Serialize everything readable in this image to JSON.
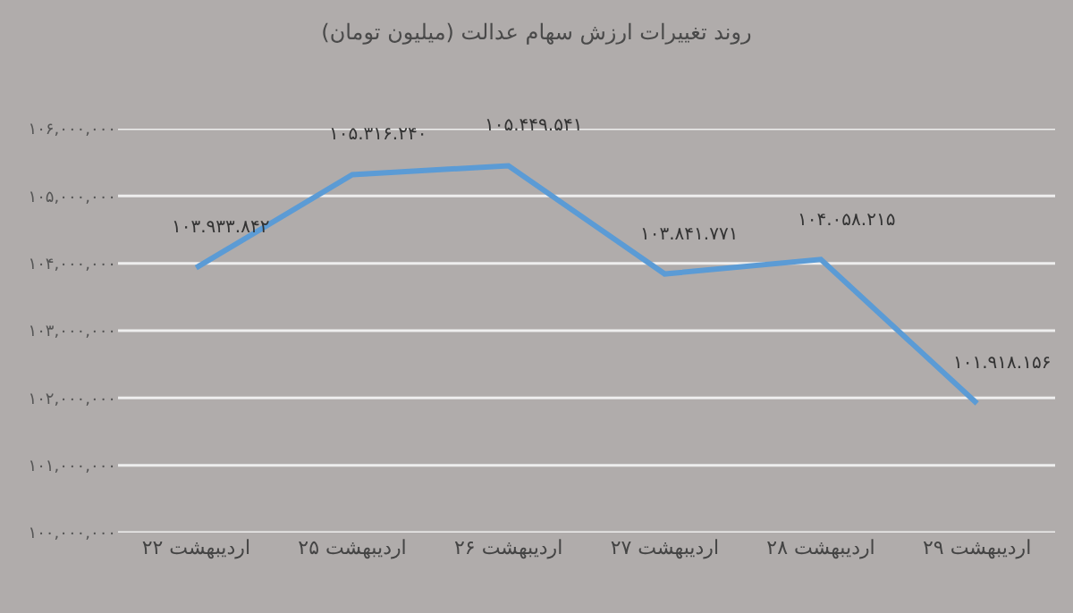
{
  "chart_data": {
    "type": "line",
    "title": "روند تغییرات ارزش سهام عدالت (میلیون تومان)",
    "categories": [
      "۲۲ اردیبهشت",
      "۲۵ اردیبهشت",
      "۲۶ اردیبهشت",
      "۲۷ اردیبهشت",
      "۲۸ اردیبهشت",
      "۲۹ اردیبهشت"
    ],
    "series": [
      {
        "color": "#5b9bd5",
        "values": [
          103933842,
          105316240,
          105449541,
          103841771,
          104058215,
          101918156
        ],
        "value_labels": [
          "۱۰۳.۹۳۳.۸۴۲",
          "۱۰۵.۳۱۶.۲۴۰",
          "۱۰۵.۴۴۹.۵۴۱",
          "۱۰۳.۸۴۱.۷۷۱",
          "۱۰۴.۰۵۸.۲۱۵",
          "۱۰۱.۹۱۸.۱۵۶"
        ]
      }
    ],
    "ylim": [
      100000000,
      106000000
    ],
    "yticks": [
      {
        "value": 100000000,
        "label": "۱۰۰,۰۰۰,۰۰۰"
      },
      {
        "value": 101000000,
        "label": "۱۰۱,۰۰۰,۰۰۰"
      },
      {
        "value": 102000000,
        "label": "۱۰۲,۰۰۰,۰۰۰"
      },
      {
        "value": 103000000,
        "label": "۱۰۳,۰۰۰,۰۰۰"
      },
      {
        "value": 104000000,
        "label": "۱۰۴,۰۰۰,۰۰۰"
      },
      {
        "value": 105000000,
        "label": "۱۰۵,۰۰۰,۰۰۰"
      },
      {
        "value": 106000000,
        "label": "۱۰۶,۰۰۰,۰۰۰"
      }
    ],
    "grid": "y",
    "marker": "none",
    "line_style": "solid"
  }
}
